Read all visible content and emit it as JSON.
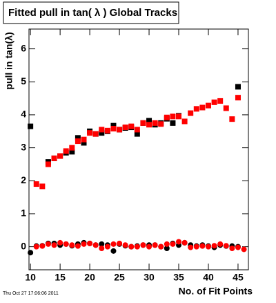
{
  "chart_data": {
    "type": "scatter",
    "title": "Fitted pull in tan( λ )  Global Tracks",
    "x_label": "No. of Fit Points",
    "y_label": "pull in tan(λ)",
    "footer": "Thu Oct 27 17:06:06 2011",
    "xlim": [
      9.75,
      46.75
    ],
    "ylim": [
      -0.7,
      6.6
    ],
    "xticks": [
      10,
      15,
      20,
      25,
      30,
      35,
      40,
      45
    ],
    "yticks": [
      0,
      1,
      2,
      3,
      4,
      5,
      6
    ],
    "series": [
      {
        "color": "#000000",
        "marker": "square",
        "x": [
          10,
          13,
          14,
          15,
          16,
          17,
          18,
          19,
          20,
          21,
          22,
          23,
          24,
          25,
          26,
          27,
          28,
          29,
          30,
          31,
          32,
          33,
          34,
          35,
          45
        ],
        "values": [
          3.65,
          2.57,
          2.68,
          2.75,
          2.85,
          2.88,
          3.3,
          3.15,
          3.5,
          3.42,
          3.45,
          3.5,
          3.67,
          3.55,
          3.6,
          3.62,
          3.42,
          3.75,
          3.82,
          3.7,
          3.75,
          3.88,
          3.75,
          3.97,
          4.85
        ]
      },
      {
        "color": "#ff0000",
        "marker": "square",
        "x": [
          11,
          12,
          13,
          14,
          15,
          16,
          17,
          18,
          19,
          20,
          21,
          22,
          23,
          24,
          25,
          26,
          27,
          28,
          29,
          30,
          31,
          32,
          33,
          34,
          35,
          36,
          37,
          38,
          39,
          40,
          41,
          42,
          43,
          44,
          45
        ],
        "values": [
          1.9,
          1.83,
          2.5,
          2.68,
          2.75,
          2.9,
          3.0,
          3.2,
          3.25,
          3.45,
          3.42,
          3.55,
          3.52,
          3.58,
          3.55,
          3.62,
          3.65,
          3.55,
          3.75,
          3.7,
          3.75,
          3.72,
          3.92,
          3.95,
          3.95,
          3.8,
          4.05,
          4.18,
          4.22,
          4.28,
          4.38,
          4.42,
          4.2,
          3.87,
          4.52
        ]
      },
      {
        "color": "#000000",
        "marker": "circle",
        "x": [
          10,
          11,
          12,
          13,
          14,
          15,
          16,
          17,
          18,
          19,
          20,
          21,
          22,
          23,
          24,
          25,
          26,
          27,
          28,
          29,
          30,
          31,
          32,
          33,
          34,
          35,
          36,
          37,
          38,
          39,
          40,
          41,
          42,
          43,
          44,
          45
        ],
        "values": [
          -0.18,
          0.02,
          0.03,
          0.1,
          0.1,
          0.05,
          0.08,
          0.03,
          0.08,
          0.12,
          0.1,
          0.05,
          0.08,
          0.05,
          -0.13,
          0.08,
          0.03,
          0.0,
          0.02,
          0.05,
          0.05,
          0.05,
          0.0,
          -0.05,
          0.1,
          0.05,
          0.12,
          0.05,
          0.02,
          0.05,
          0.02,
          -0.02,
          0.05,
          0.02,
          0.02,
          0.0
        ]
      },
      {
        "color": "#ff0000",
        "marker": "circle",
        "x": [
          11,
          12,
          13,
          14,
          15,
          16,
          17,
          18,
          19,
          20,
          21,
          22,
          23,
          24,
          25,
          26,
          27,
          28,
          29,
          30,
          31,
          32,
          33,
          34,
          35,
          36,
          37,
          38,
          39,
          40,
          41,
          42,
          43,
          44,
          45,
          46
        ],
        "values": [
          0.0,
          0.02,
          0.08,
          0.05,
          0.12,
          0.08,
          0.05,
          0.02,
          0.08,
          0.1,
          0.05,
          -0.05,
          0.0,
          0.08,
          0.1,
          0.05,
          0.0,
          0.0,
          0.05,
          0.0,
          0.05,
          0.0,
          0.08,
          0.08,
          0.15,
          0.12,
          -0.02,
          0.0,
          0.02,
          0.0,
          0.03,
          0.08,
          0.03,
          -0.05,
          -0.02,
          -0.08
        ]
      }
    ]
  }
}
